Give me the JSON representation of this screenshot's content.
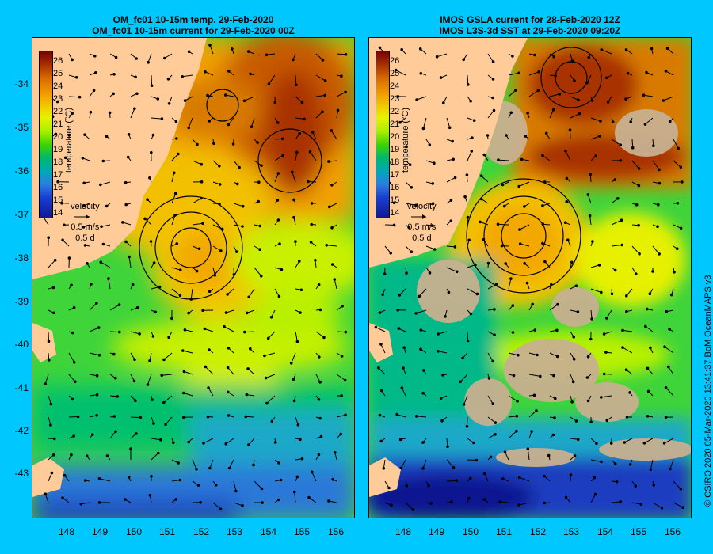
{
  "left_panel": {
    "title_line1": "OM_fc01 10-15m temp. 29-Feb-2020",
    "title_line2": "OM_fc01 10-15m current for 29-Feb-2020 00Z"
  },
  "right_panel": {
    "title_line1": "IMOS GSLA current for 28-Feb-2020 12Z",
    "title_line2": "IMOS L3S-3d SST at 29-Feb-2020 09:20Z"
  },
  "colorbar": {
    "label": "temperature (°C)",
    "ticks": [
      "26",
      "25",
      "24",
      "23",
      "22",
      "21",
      "20",
      "19",
      "18",
      "17",
      "16",
      "15",
      "14"
    ]
  },
  "velocity_legend": {
    "title": "velocity",
    "speed": "0.5 m/s",
    "duration": "0.5 d"
  },
  "axes": {
    "y_ticks": [
      "-34",
      "-35",
      "-36",
      "-37",
      "-38",
      "-39",
      "-40",
      "-41",
      "-42",
      "-43"
    ],
    "x_ticks": [
      "148",
      "149",
      "150",
      "151",
      "152",
      "153",
      "154",
      "155",
      "156"
    ]
  },
  "credit": "© CSIRO 2020  05-Mar-2020 13:41:37 BoM OceanMAPS v3",
  "colors": {
    "background": "#00c8ff",
    "land": "#ffcc99",
    "no_data": "#c8b090"
  }
}
